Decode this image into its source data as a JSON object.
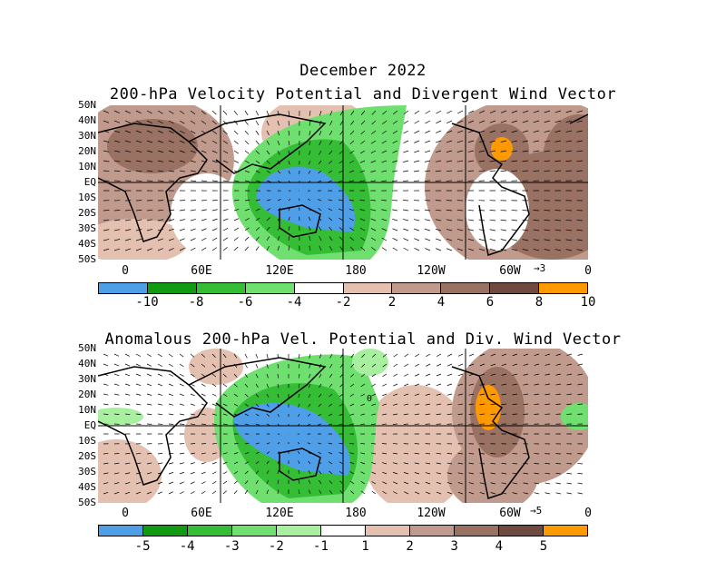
{
  "titles": {
    "month": "December 2022",
    "top": "200-hPa Velocity Potential and Divergent Wind Vector",
    "bottom": "Anomalous 200-hPa Vel. Potential and Div. Wind Vector"
  },
  "lat_labels": [
    "50N",
    "40N",
    "30N",
    "20N",
    "10N",
    "EQ",
    "10S",
    "20S",
    "30S",
    "40S",
    "50S"
  ],
  "lon_labels": [
    "0",
    "60E",
    "120E",
    "180",
    "120W",
    "60W",
    "0"
  ],
  "top_panel": {
    "vector_ref": "3",
    "colorbar_labels": [
      "-10",
      "-8",
      "-6",
      "-4",
      "-2",
      "2",
      "4",
      "6",
      "8",
      "10"
    ],
    "colors": [
      "#4f9ee8",
      "#129b12",
      "#35bd35",
      "#6fe06f",
      "#ffffff",
      "#e4c0b0",
      "#c09a8c",
      "#9a7264",
      "#6e4a40",
      "#ff9900"
    ]
  },
  "bottom_panel": {
    "vector_ref": "5",
    "colorbar_labels": [
      "-5",
      "-4",
      "-3",
      "-2",
      "-1",
      "1",
      "2",
      "3",
      "4",
      "5"
    ],
    "colors": [
      "#4f9ee8",
      "#129b12",
      "#35bd35",
      "#6fe06f",
      "#a8f0a0",
      "#ffffff",
      "#e4c0b0",
      "#c09a8c",
      "#9a7264",
      "#6e4a40",
      "#ff9900"
    ],
    "contour_label": "0"
  },
  "palette": {
    "blue": "#4f9ee8",
    "dkgreen": "#129b12",
    "green": "#35bd35",
    "ltgreen": "#6fe06f",
    "paleGreen": "#a8f0a0",
    "tan1": "#e4c0b0",
    "tan2": "#c09a8c",
    "brown": "#9a7264",
    "dkbrown": "#6e4a40",
    "orange": "#ff9900"
  }
}
